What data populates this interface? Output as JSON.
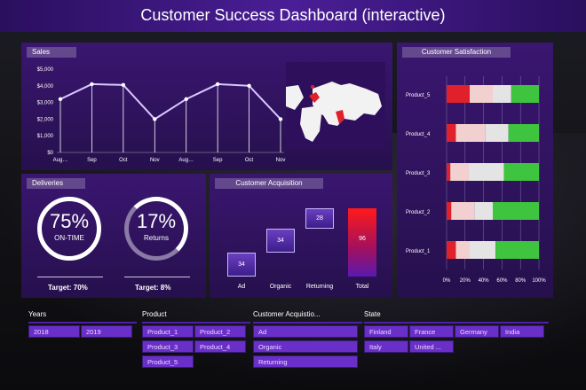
{
  "title": "Customer Success Dashboard (interactive)",
  "sales": {
    "panel_title": "Sales",
    "chart_data": {
      "type": "line",
      "categories": [
        "Aug…",
        "Sep",
        "Oct",
        "Nov",
        "Aug…",
        "Sep",
        "Oct",
        "Nov"
      ],
      "values": [
        3200,
        4100,
        4050,
        2000,
        3200,
        4100,
        4000,
        2000
      ],
      "ylim": [
        0,
        5000
      ],
      "yticks": [
        "$0",
        "$1,000",
        "$2,000",
        "$3,000",
        "$4,000",
        "$5,000"
      ],
      "color": "#ffffff"
    }
  },
  "deliveries": {
    "panel_title": "Deliveries",
    "ontime_value": "75%",
    "ontime_label": "ON-TIME",
    "ontime_target": "Target: 70%",
    "returns_value": "17%",
    "returns_label": "Returns",
    "returns_target": "Target: 8%"
  },
  "acquisition": {
    "panel_title": "Customer Acquisition",
    "chart_data": {
      "type": "bar",
      "categories": [
        "Ad",
        "Organic",
        "Returning",
        "Total"
      ],
      "values": [
        34,
        34,
        28,
        96
      ]
    }
  },
  "satisfaction": {
    "panel_title": "Customer Satisfaction",
    "chart_data": {
      "type": "bar",
      "categories": [
        "Product_5",
        "Product_4",
        "Product_3",
        "Product_2",
        "Product_1"
      ],
      "xticks": [
        "0%",
        "20%",
        "40%",
        "60%",
        "80%",
        "100%"
      ],
      "series": [
        {
          "values": [
            0.25,
            0.1,
            0.04,
            0.05,
            0.1
          ],
          "color": "#e0202a"
        },
        {
          "values": [
            0.25,
            0.32,
            0.2,
            0.25,
            0.15
          ],
          "color": "#f3d0d0"
        },
        {
          "values": [
            0.2,
            0.25,
            0.38,
            0.2,
            0.28
          ],
          "color": "#e4e4e4"
        },
        {
          "values": [
            0.3,
            0.33,
            0.38,
            0.5,
            0.47
          ],
          "color": "#3ec43e"
        }
      ]
    }
  },
  "slicers": {
    "years": {
      "label": "Years",
      "items": [
        "2018",
        "2019"
      ]
    },
    "product": {
      "label": "Product",
      "items": [
        "Product_1",
        "Product_2",
        "Product_3",
        "Product_4",
        "Product_5"
      ]
    },
    "acquisition": {
      "label": "Customer Acquistio...",
      "items": [
        "Ad",
        "Organic",
        "Returning"
      ]
    },
    "state": {
      "label": "State",
      "items": [
        "Finland",
        "France",
        "Germany",
        "India",
        "Italy",
        "United ..."
      ]
    }
  },
  "colors": {
    "accent": "#6a2fc8",
    "title_bar": "#4a1e96",
    "panel": "#2e1360"
  }
}
